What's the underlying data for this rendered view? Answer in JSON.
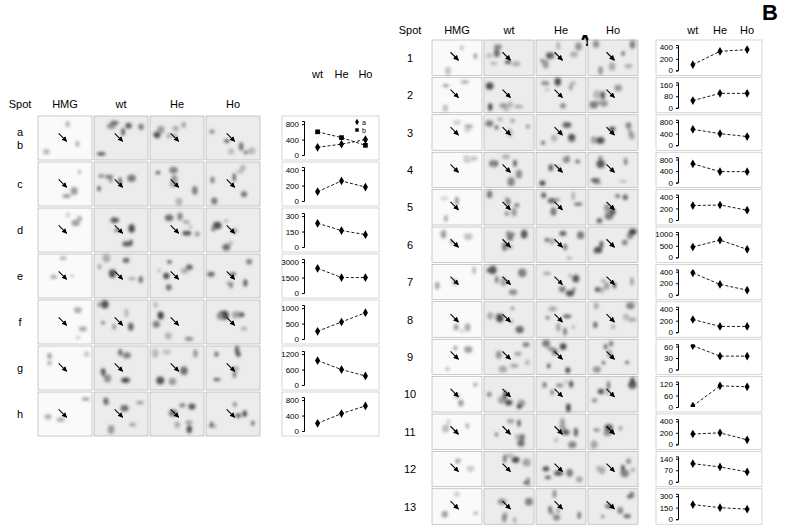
{
  "figure": {
    "panels": [
      {
        "label": "A",
        "column_header": "Spot",
        "columns": [
          "HMG",
          "wt",
          "He",
          "Ho"
        ],
        "chart_header": [
          "wt",
          "He",
          "Ho"
        ],
        "rows": [
          [
            "a",
            "b"
          ],
          [
            "c"
          ],
          [
            "d"
          ],
          [
            "e"
          ],
          [
            "f"
          ],
          [
            "g"
          ],
          [
            "h"
          ]
        ]
      },
      {
        "label": "B",
        "column_header": "Spot",
        "columns": [
          "HMG",
          "wt",
          "He",
          "Ho"
        ],
        "chart_header": [
          "wt",
          "He",
          "Ho"
        ],
        "rows": [
          [
            "1"
          ],
          [
            "2"
          ],
          [
            "3"
          ],
          [
            "4"
          ],
          [
            "5"
          ],
          [
            "6"
          ],
          [
            "7"
          ],
          [
            "8"
          ],
          [
            "9"
          ],
          [
            "10"
          ],
          [
            "11"
          ],
          [
            "12"
          ],
          [
            "13"
          ]
        ]
      }
    ]
  },
  "chart_data": [
    {
      "type": "line",
      "categories": [
        null,
        null,
        null
      ],
      "tick_labels": "y",
      "legend": "top-right",
      "ylim": [
        0,
        880
      ],
      "yticks": [
        0,
        400,
        800
      ],
      "series": [
        {
          "name": "a",
          "color": "#000000",
          "marker": "diamond",
          "line_style": "dashed",
          "values": [
            200,
            280,
            400
          ]
        },
        {
          "name": "b",
          "color": "#000000",
          "marker": "square",
          "line_style": "dashed",
          "values": [
            600,
            450,
            250
          ]
        }
      ]
    },
    {
      "type": "line",
      "categories": [
        null,
        null,
        null
      ],
      "tick_labels": "y",
      "ylim": [
        0,
        440
      ],
      "yticks": [
        0,
        200,
        400
      ],
      "series": [
        {
          "color": "#000000",
          "marker": "diamond",
          "line_style": "dashed",
          "values": [
            120,
            260,
            180
          ]
        }
      ]
    },
    {
      "type": "line",
      "categories": [
        null,
        null,
        null
      ],
      "tick_labels": "y",
      "ylim": [
        0,
        330
      ],
      "yticks": [
        0,
        150,
        300
      ],
      "series": [
        {
          "color": "#000000",
          "marker": "diamond",
          "line_style": "dashed",
          "values": [
            230,
            160,
            120
          ]
        }
      ]
    },
    {
      "type": "line",
      "categories": [
        null,
        null,
        null
      ],
      "tick_labels": "y",
      "ylim": [
        0,
        3300
      ],
      "yticks": [
        0,
        1500,
        3000
      ],
      "series": [
        {
          "color": "#000000",
          "marker": "diamond",
          "line_style": "dashed",
          "values": [
            2400,
            1500,
            1500
          ]
        }
      ]
    },
    {
      "type": "line",
      "categories": [
        null,
        null,
        null
      ],
      "tick_labels": "y",
      "ylim": [
        0,
        1100
      ],
      "yticks": [
        0,
        500,
        1000
      ],
      "series": [
        {
          "color": "#000000",
          "marker": "diamond",
          "line_style": "dashed",
          "values": [
            250,
            550,
            850
          ]
        }
      ]
    },
    {
      "type": "line",
      "categories": [
        null,
        null,
        null
      ],
      "tick_labels": "y",
      "ylim": [
        0,
        1320
      ],
      "yticks": [
        0,
        600,
        1200
      ],
      "series": [
        {
          "color": "#000000",
          "marker": "diamond",
          "line_style": "dashed",
          "values": [
            950,
            600,
            350
          ]
        }
      ]
    },
    {
      "type": "line",
      "categories": [
        null,
        null,
        null
      ],
      "tick_labels": "y",
      "ylim": [
        0,
        880
      ],
      "yticks": [
        0,
        400,
        800
      ],
      "series": [
        {
          "color": "#000000",
          "marker": "diamond",
          "line_style": "dashed",
          "values": [
            200,
            450,
            650
          ]
        }
      ]
    },
    {
      "type": "line",
      "categories": [
        null,
        null,
        null
      ],
      "tick_labels": "y",
      "ylim": [
        0,
        440
      ],
      "yticks": [
        0,
        200,
        400
      ],
      "series": [
        {
          "color": "#000000",
          "marker": "diamond",
          "line_style": "dashed",
          "values": [
            100,
            330,
            360
          ]
        }
      ]
    },
    {
      "type": "line",
      "categories": [
        null,
        null,
        null
      ],
      "tick_labels": "y",
      "ylim": [
        0,
        176
      ],
      "yticks": [
        0,
        80,
        160
      ],
      "series": [
        {
          "color": "#000000",
          "marker": "diamond",
          "line_style": "dashed",
          "values": [
            50,
            100,
            100
          ]
        }
      ]
    },
    {
      "type": "line",
      "categories": [
        null,
        null,
        null
      ],
      "tick_labels": "y",
      "ylim": [
        0,
        880
      ],
      "yticks": [
        0,
        400,
        800
      ],
      "series": [
        {
          "color": "#000000",
          "marker": "diamond",
          "line_style": "dashed",
          "values": [
            550,
            400,
            300
          ]
        }
      ]
    },
    {
      "type": "line",
      "categories": [
        null,
        null,
        null
      ],
      "tick_labels": "y",
      "ylim": [
        0,
        880
      ],
      "yticks": [
        0,
        400,
        800
      ],
      "series": [
        {
          "color": "#000000",
          "marker": "diamond",
          "line_style": "dashed",
          "values": [
            650,
            380,
            380
          ]
        }
      ]
    },
    {
      "type": "line",
      "categories": [
        null,
        null,
        null
      ],
      "tick_labels": "y",
      "ylim": [
        0,
        440
      ],
      "yticks": [
        0,
        200,
        400
      ],
      "series": [
        {
          "color": "#000000",
          "marker": "diamond",
          "line_style": "dashed",
          "values": [
            250,
            260,
            170
          ]
        }
      ]
    },
    {
      "type": "line",
      "categories": [
        null,
        null,
        null
      ],
      "tick_labels": "y",
      "ylim": [
        0,
        1100
      ],
      "yticks": [
        0,
        500,
        1000
      ],
      "series": [
        {
          "color": "#000000",
          "marker": "diamond",
          "line_style": "dashed",
          "values": [
            450,
            750,
            350
          ]
        }
      ]
    },
    {
      "type": "line",
      "categories": [
        null,
        null,
        null
      ],
      "tick_labels": "y",
      "ylim": [
        0,
        440
      ],
      "yticks": [
        0,
        200,
        400
      ],
      "series": [
        {
          "color": "#000000",
          "marker": "diamond",
          "line_style": "dashed",
          "values": [
            380,
            180,
            80
          ]
        }
      ]
    },
    {
      "type": "line",
      "categories": [
        null,
        null,
        null
      ],
      "tick_labels": "y",
      "ylim": [
        0,
        440
      ],
      "yticks": [
        0,
        200,
        400
      ],
      "series": [
        {
          "color": "#000000",
          "marker": "diamond",
          "line_style": "dashed",
          "values": [
            220,
            100,
            100
          ]
        }
      ]
    },
    {
      "type": "line",
      "categories": [
        null,
        null,
        null
      ],
      "tick_labels": "y",
      "ylim": [
        0,
        66
      ],
      "yticks": [
        0,
        30,
        60
      ],
      "series": [
        {
          "color": "#000000",
          "marker": "diamond",
          "line_style": "dashed",
          "values": [
            62,
            35,
            35
          ]
        }
      ]
    },
    {
      "type": "line",
      "categories": [
        null,
        null,
        null
      ],
      "tick_labels": "y",
      "ylim": [
        0,
        132
      ],
      "yticks": [
        0,
        60,
        120
      ],
      "series": [
        {
          "color": "#000000",
          "marker": "diamond",
          "line_style": "dashed",
          "values": [
            5,
            110,
            105
          ]
        }
      ]
    },
    {
      "type": "line",
      "categories": [
        null,
        null,
        null
      ],
      "tick_labels": "y",
      "ylim": [
        0,
        440
      ],
      "yticks": [
        0,
        200,
        400
      ],
      "series": [
        {
          "color": "#000000",
          "marker": "diamond",
          "line_style": "dashed",
          "values": [
            180,
            200,
            80
          ]
        }
      ]
    },
    {
      "type": "line",
      "categories": [
        null,
        null,
        null
      ],
      "tick_labels": "y",
      "ylim": [
        0,
        154
      ],
      "yticks": [
        0,
        70,
        140
      ],
      "series": [
        {
          "color": "#000000",
          "marker": "diamond",
          "line_style": "dashed",
          "values": [
            110,
            90,
            60
          ]
        }
      ]
    },
    {
      "type": "line",
      "categories": [
        null,
        null,
        null
      ],
      "tick_labels": "y",
      "ylim": [
        0,
        330
      ],
      "yticks": [
        0,
        150,
        300
      ],
      "series": [
        {
          "color": "#000000",
          "marker": "diamond",
          "line_style": "dashed",
          "values": [
            190,
            150,
            130
          ]
        }
      ]
    }
  ]
}
